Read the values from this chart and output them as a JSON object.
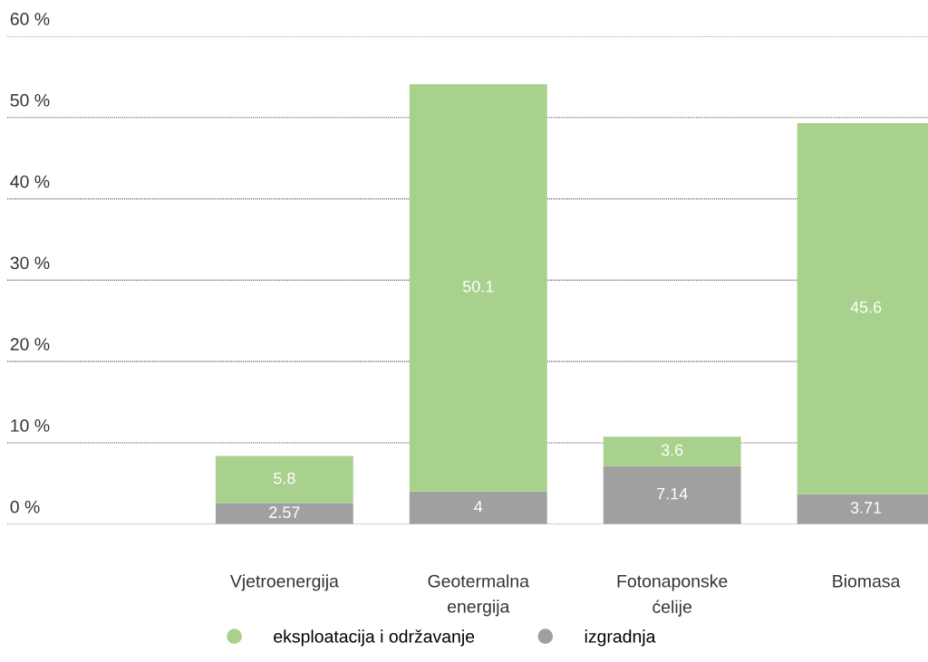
{
  "chart_data": {
    "type": "bar",
    "stacked": true,
    "categories": [
      "Vjetroenergija",
      "Geotermalna\nenergija",
      "Fotonaponske\nćelije",
      "Biomasa"
    ],
    "series": [
      {
        "name": "izgradnja",
        "color": "#a0a0a0",
        "values": [
          2.57,
          4,
          7.14,
          3.71
        ]
      },
      {
        "name": "eksploatacija i održavanje",
        "color": "#a9d18e",
        "values": [
          5.8,
          50.1,
          3.6,
          45.6
        ]
      }
    ],
    "ylim": [
      0,
      60
    ],
    "yticks": [
      {
        "value": 0,
        "label": "0 %"
      },
      {
        "value": 10,
        "label": "10 %"
      },
      {
        "value": 20,
        "label": "20 %"
      },
      {
        "value": 30,
        "label": "30 %"
      },
      {
        "value": 40,
        "label": "40 %"
      },
      {
        "value": 50,
        "label": "50 %"
      },
      {
        "value": 60,
        "label": "60 %"
      }
    ],
    "grid": "y",
    "data_labels": true,
    "legend": "bottom"
  }
}
